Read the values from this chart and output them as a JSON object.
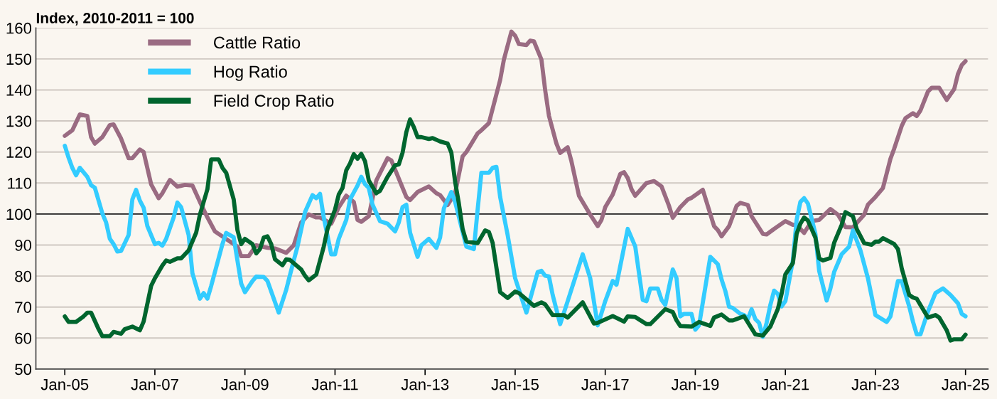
{
  "chart_data": {
    "type": "line",
    "ylabel": "Index, 2010-2011 = 100",
    "xlim": [
      "2004-05-10",
      "2025-07-01"
    ],
    "xticks": [
      {
        "value": "2005-01",
        "label": "Jan-05"
      },
      {
        "value": "2007-01",
        "label": "Jan-07"
      },
      {
        "value": "2009-01",
        "label": "Jan-09"
      },
      {
        "value": "2011-01",
        "label": "Jan-11"
      },
      {
        "value": "2013-01",
        "label": "Jan-13"
      },
      {
        "value": "2015-01",
        "label": "Jan-15"
      },
      {
        "value": "2017-01",
        "label": "Jan-17"
      },
      {
        "value": "2019-01",
        "label": "Jan-19"
      },
      {
        "value": "2021-01",
        "label": "Jan-21"
      },
      {
        "value": "2023-01",
        "label": "Jan-23"
      },
      {
        "value": "2025-01",
        "label": "Jan-25"
      }
    ],
    "ylim": [
      50,
      160
    ],
    "yticks": [
      50,
      60,
      70,
      80,
      90,
      100,
      110,
      120,
      130,
      140,
      150,
      160
    ],
    "grid": "y",
    "legend": "top left",
    "line_style": "solid",
    "ref_lines": [
      {
        "axis": "y",
        "value": 100,
        "color": "#222222"
      }
    ],
    "series": [
      {
        "name": "Cattle Ratio",
        "color": "#9a6b82",
        "x": [
          "2005-01",
          "2005-03",
          "2005-05",
          "2005-07",
          "2005-08",
          "2005-09",
          "2005-11",
          "2006-01",
          "2006-02",
          "2006-04",
          "2006-06",
          "2006-07",
          "2006-09",
          "2006-10",
          "2006-12",
          "2007-02",
          "2007-03",
          "2007-05",
          "2007-07",
          "2007-09",
          "2007-11",
          "2008-01",
          "2008-03",
          "2008-05",
          "2008-09",
          "2008-11",
          "2008-12",
          "2009-02",
          "2009-04",
          "2009-07",
          "2009-09",
          "2009-12",
          "2010-02",
          "2010-04",
          "2010-06",
          "2010-08",
          "2010-09",
          "2010-12",
          "2011-02",
          "2011-04",
          "2011-06",
          "2011-07",
          "2011-08",
          "2011-10",
          "2011-12",
          "2012-03",
          "2012-04",
          "2012-08",
          "2012-09",
          "2012-11",
          "2013-02",
          "2013-04",
          "2013-05",
          "2013-07",
          "2013-09",
          "2013-11",
          "2013-12",
          "2014-03",
          "2014-04",
          "2014-06",
          "2014-09",
          "2014-10",
          "2014-12",
          "2015-01",
          "2015-02",
          "2015-04",
          "2015-05",
          "2015-06",
          "2015-08",
          "2015-09",
          "2015-10",
          "2015-12",
          "2016-01",
          "2016-03",
          "2016-04",
          "2016-06",
          "2016-09",
          "2016-11",
          "2016-12",
          "2017-01",
          "2017-03",
          "2017-05",
          "2017-06",
          "2017-07",
          "2017-08",
          "2017-09",
          "2017-12",
          "2018-02",
          "2018-04",
          "2018-06",
          "2018-07",
          "2018-09",
          "2018-11",
          "2018-12",
          "2019-03",
          "2019-06",
          "2019-07",
          "2019-08",
          "2019-10",
          "2019-12",
          "2020-01",
          "2020-03",
          "2020-04",
          "2020-07",
          "2020-08",
          "2020-10",
          "2021-01",
          "2021-03",
          "2021-04",
          "2021-06",
          "2021-08",
          "2021-10",
          "2022-01",
          "2022-03",
          "2022-05",
          "2022-07",
          "2022-10",
          "2022-11",
          "2023-01",
          "2023-03",
          "2023-05",
          "2023-06",
          "2023-08",
          "2023-09",
          "2023-11",
          "2023-12",
          "2024-01",
          "2024-03",
          "2024-04",
          "2024-06",
          "2024-08",
          "2024-10",
          "2024-11",
          "2024-12",
          "2025-01"
        ],
        "values": [
          125.2,
          127,
          132.1,
          131.6,
          124.8,
          122.7,
          124.8,
          128.7,
          128.9,
          124.3,
          118,
          118,
          120.8,
          120,
          109.6,
          105.1,
          106.7,
          111,
          108.8,
          109.4,
          109.2,
          103.9,
          98.9,
          94.4,
          91.1,
          89.5,
          86.4,
          86.4,
          89.9,
          89.1,
          88.9,
          87.5,
          89.9,
          97.3,
          99.9,
          98.9,
          98.9,
          96.9,
          102.2,
          105.9,
          103.9,
          98.1,
          97.5,
          99.3,
          110.8,
          118,
          117.3,
          105.5,
          104.5,
          107.1,
          108.9,
          106.7,
          106.1,
          102.9,
          106.7,
          118.6,
          120,
          126,
          127,
          129.3,
          143.2,
          149.8,
          158.8,
          157.5,
          154.8,
          154.5,
          155.9,
          155.7,
          149.8,
          139.9,
          131.7,
          122.7,
          119.7,
          121.5,
          117,
          105.9,
          99.8,
          96.1,
          98.1,
          102.2,
          106.3,
          112.9,
          113.5,
          111.6,
          108,
          105.9,
          110,
          110.6,
          108.9,
          102.6,
          98.8,
          102.2,
          104.7,
          105.2,
          107.8,
          96.1,
          94.8,
          92.8,
          96.1,
          102.6,
          103.6,
          102.9,
          99.3,
          93.6,
          93.4,
          95.2,
          97.7,
          96.5,
          96.5,
          93.9,
          97.7,
          98.1,
          101.6,
          99.8,
          95.8,
          95.7,
          99.8,
          103,
          105.5,
          108.4,
          117.8,
          121.1,
          128.4,
          130.9,
          132.5,
          131.6,
          133.4,
          139.5,
          140.7,
          140.7,
          136.8,
          140.3,
          145.2,
          148,
          149.3
        ]
      },
      {
        "name": "Hog Ratio",
        "color": "#33ccff",
        "x": [
          "2005-01",
          "2005-02",
          "2005-03",
          "2005-04",
          "2005-05",
          "2005-07",
          "2005-08",
          "2005-09",
          "2005-11",
          "2005-12",
          "2006-01",
          "2006-02",
          "2006-03",
          "2006-04",
          "2006-06",
          "2006-07",
          "2006-08",
          "2006-09",
          "2006-10",
          "2006-11",
          "2007-01",
          "2007-02",
          "2007-03",
          "2007-04",
          "2007-06",
          "2007-07",
          "2007-08",
          "2007-10",
          "2007-11",
          "2008-01",
          "2008-02",
          "2008-03",
          "2008-04",
          "2008-07",
          "2008-08",
          "2008-10",
          "2008-11",
          "2008-12",
          "2009-01",
          "2009-03",
          "2009-04",
          "2009-06",
          "2009-07",
          "2009-10",
          "2009-12",
          "2010-02",
          "2010-03",
          "2010-05",
          "2010-07",
          "2010-08",
          "2010-09",
          "2010-10",
          "2010-12",
          "2011-01",
          "2011-02",
          "2011-04",
          "2011-05",
          "2011-07",
          "2011-08",
          "2011-09",
          "2011-10",
          "2011-11",
          "2012-01",
          "2012-03",
          "2012-05",
          "2012-06",
          "2012-07",
          "2012-08",
          "2012-09",
          "2012-11",
          "2012-12",
          "2013-02",
          "2013-04",
          "2013-05",
          "2013-06",
          "2013-08",
          "2013-09",
          "2013-12",
          "2014-02",
          "2014-03",
          "2014-04",
          "2014-06",
          "2014-07",
          "2014-08",
          "2014-09",
          "2014-11",
          "2015-01",
          "2015-04",
          "2015-07",
          "2015-08",
          "2015-09",
          "2015-10",
          "2015-11",
          "2016-01",
          "2016-03",
          "2016-07",
          "2016-09",
          "2016-11",
          "2017-01",
          "2017-03",
          "2017-04",
          "2017-07",
          "2017-09",
          "2017-11",
          "2017-12",
          "2018-01",
          "2018-03",
          "2018-04",
          "2018-05",
          "2018-07",
          "2018-08",
          "2018-09",
          "2018-10",
          "2018-12",
          "2019-01",
          "2019-02",
          "2019-05",
          "2019-07",
          "2019-08",
          "2019-09",
          "2019-10",
          "2019-11",
          "2020-01",
          "2020-02",
          "2020-03",
          "2020-04",
          "2020-05",
          "2020-06",
          "2020-07",
          "2020-08",
          "2020-09",
          "2020-10",
          "2020-11",
          "2020-12",
          "2021-01",
          "2021-03",
          "2021-04",
          "2021-05",
          "2021-06",
          "2021-07",
          "2021-09",
          "2021-10",
          "2021-12",
          "2022-01",
          "2022-02",
          "2022-04",
          "2022-06",
          "2022-07",
          "2022-09",
          "2022-11",
          "2023-01",
          "2023-04",
          "2023-05",
          "2023-07",
          "2023-08",
          "2023-10",
          "2023-11",
          "2023-12",
          "2024-01",
          "2024-03",
          "2024-05",
          "2024-07",
          "2024-09",
          "2024-11",
          "2024-12",
          "2025-01"
        ],
        "values": [
          122,
          118.2,
          114.9,
          112.5,
          114.9,
          112,
          109.3,
          108.5,
          100.2,
          97.3,
          92,
          90.3,
          87.9,
          88.1,
          93.2,
          104.7,
          107.8,
          104.3,
          102,
          96.1,
          90.3,
          90.7,
          89.8,
          92,
          98.9,
          103.7,
          102.2,
          93.2,
          80.9,
          72.7,
          74.5,
          72.7,
          76.8,
          90.3,
          93.9,
          92.5,
          85,
          77.6,
          74.8,
          78.4,
          79.8,
          79.7,
          78.4,
          68.2,
          75.6,
          85,
          89.5,
          100.6,
          106.1,
          105.1,
          106.5,
          98.9,
          87,
          87,
          92,
          98.1,
          104.7,
          109.2,
          112,
          109.6,
          108.4,
          103,
          97.7,
          96.9,
          94.4,
          97.3,
          102.2,
          103,
          94,
          86.2,
          89.9,
          92,
          89.1,
          92.4,
          101.8,
          107.1,
          103.9,
          89.5,
          88.7,
          101.4,
          113.3,
          113.3,
          114.9,
          115.2,
          105.5,
          93.2,
          79.3,
          68.2,
          81.3,
          81.7,
          80.1,
          79.9,
          73.9,
          64.5,
          71.9,
          87,
          79.3,
          64.1,
          71.9,
          78.4,
          77.2,
          95.2,
          89.5,
          72.3,
          71.9,
          76,
          76,
          72.3,
          70.7,
          82.1,
          79.3,
          67,
          67.8,
          67.8,
          62.7,
          64.1,
          86.2,
          83.8,
          78.9,
          75.2,
          70.1,
          69.7,
          67.8,
          67.4,
          66.1,
          69.3,
          66.1,
          64.9,
          60.4,
          64.9,
          70.7,
          75.3,
          74.2,
          70.2,
          71.9,
          85,
          98.1,
          103.9,
          105.1,
          103.4,
          93.6,
          81.7,
          72.1,
          76,
          81.3,
          87,
          89.5,
          94.7,
          88.3,
          79.3,
          67.4,
          65.2,
          67,
          78.4,
          78.3,
          70.2,
          65.3,
          61.2,
          61.2,
          68.6,
          74.5,
          76,
          73.9,
          71.2,
          67.8,
          67
        ]
      },
      {
        "name": "Field Crop Ratio",
        "color": "#00652e",
        "x": [
          "2005-01",
          "2005-02",
          "2005-04",
          "2005-06",
          "2005-07",
          "2005-08",
          "2005-10",
          "2005-11",
          "2006-01",
          "2006-02",
          "2006-04",
          "2006-05",
          "2006-07",
          "2006-09",
          "2006-10",
          "2006-12",
          "2007-01",
          "2007-03",
          "2007-04",
          "2007-05",
          "2007-07",
          "2007-08",
          "2007-10",
          "2007-12",
          "2008-01",
          "2008-03",
          "2008-04",
          "2008-06",
          "2008-07",
          "2008-08",
          "2008-10",
          "2008-11",
          "2008-12",
          "2009-01",
          "2009-03",
          "2009-04",
          "2009-05",
          "2009-06",
          "2009-07",
          "2009-08",
          "2009-09",
          "2009-11",
          "2009-12",
          "2010-01",
          "2010-04",
          "2010-05",
          "2010-06",
          "2010-08",
          "2010-10",
          "2010-11",
          "2011-01",
          "2011-02",
          "2011-03",
          "2011-04",
          "2011-05",
          "2011-06",
          "2011-07",
          "2011-08",
          "2011-09",
          "2011-10",
          "2011-12",
          "2012-01",
          "2012-03",
          "2012-05",
          "2012-06",
          "2012-07",
          "2012-08",
          "2012-09",
          "2012-10",
          "2012-11",
          "2012-12",
          "2013-02",
          "2013-03",
          "2013-05",
          "2013-07",
          "2013-08",
          "2013-09",
          "2013-10",
          "2013-11",
          "2013-12",
          "2014-03",
          "2014-05",
          "2014-06",
          "2014-07",
          "2014-09",
          "2014-11",
          "2015-01",
          "2015-02",
          "2015-06",
          "2015-08",
          "2015-09",
          "2015-11",
          "2016-02",
          "2016-03",
          "2016-07",
          "2016-10",
          "2016-11",
          "2017-03",
          "2017-06",
          "2017-07",
          "2017-09",
          "2017-12",
          "2018-01",
          "2018-05",
          "2018-07",
          "2018-08",
          "2018-09",
          "2018-12",
          "2019-02",
          "2019-05",
          "2019-06",
          "2019-08",
          "2019-10",
          "2019-11",
          "2020-02",
          "2020-05",
          "2020-07",
          "2020-09",
          "2020-11",
          "2020-12",
          "2021-01",
          "2021-03",
          "2021-04",
          "2021-05",
          "2021-06",
          "2021-07",
          "2021-09",
          "2021-10",
          "2021-11",
          "2022-01",
          "2022-02",
          "2022-04",
          "2022-05",
          "2022-07",
          "2022-08",
          "2022-10",
          "2022-12",
          "2023-01",
          "2023-02",
          "2023-03",
          "2023-06",
          "2023-07",
          "2023-08",
          "2023-10",
          "2023-11",
          "2023-12",
          "2024-03",
          "2024-05",
          "2024-06",
          "2024-08",
          "2024-09",
          "2024-10",
          "2024-12",
          "2025-01"
        ],
        "values": [
          67,
          65.2,
          65.2,
          67,
          68.2,
          68.2,
          62.9,
          60.6,
          60.6,
          62,
          61.4,
          62.9,
          63.7,
          62.5,
          65.3,
          76.8,
          79.3,
          83.4,
          85,
          84.6,
          85.7,
          85.7,
          88.3,
          94,
          99.8,
          108,
          117.6,
          117.6,
          114.9,
          113.3,
          104.7,
          94.8,
          90.3,
          92,
          90.3,
          87.3,
          88.7,
          92.4,
          92.8,
          90.3,
          85.4,
          83.5,
          85.4,
          85.2,
          82.1,
          80.1,
          78.6,
          80.5,
          89.5,
          95.2,
          101.4,
          106.3,
          108.4,
          114.1,
          116.3,
          119.3,
          117.8,
          119.4,
          117,
          110.8,
          106.7,
          107.5,
          112,
          115.7,
          116,
          119.8,
          126.4,
          130.5,
          128,
          124.8,
          124.8,
          124.2,
          124.5,
          123.4,
          122.7,
          119.8,
          110.4,
          103.4,
          95.2,
          91.1,
          90.6,
          94.7,
          94.2,
          90.7,
          74.8,
          72.9,
          75,
          74.5,
          70.4,
          71.5,
          70.9,
          67.4,
          67.4,
          66.6,
          71.5,
          64.7,
          64.9,
          67.1,
          65.3,
          67,
          66.8,
          64.5,
          64.5,
          69.3,
          68.4,
          65.7,
          63.9,
          63.7,
          65.2,
          63.9,
          66.6,
          67.6,
          65.7,
          65.7,
          67,
          61.2,
          60.8,
          63.7,
          69.4,
          74.3,
          80.5,
          84.2,
          93.6,
          96.9,
          98.9,
          97.9,
          92.4,
          85.7,
          85,
          85.8,
          90.7,
          96.5,
          100.6,
          99.3,
          95.2,
          90.6,
          90.1,
          91.1,
          91.1,
          92.2,
          90.3,
          88.7,
          82.5,
          73.9,
          73.1,
          72.7,
          66.6,
          67.4,
          66.6,
          62.5,
          59.2,
          59.6,
          59.6,
          61.1
        ]
      }
    ]
  }
}
